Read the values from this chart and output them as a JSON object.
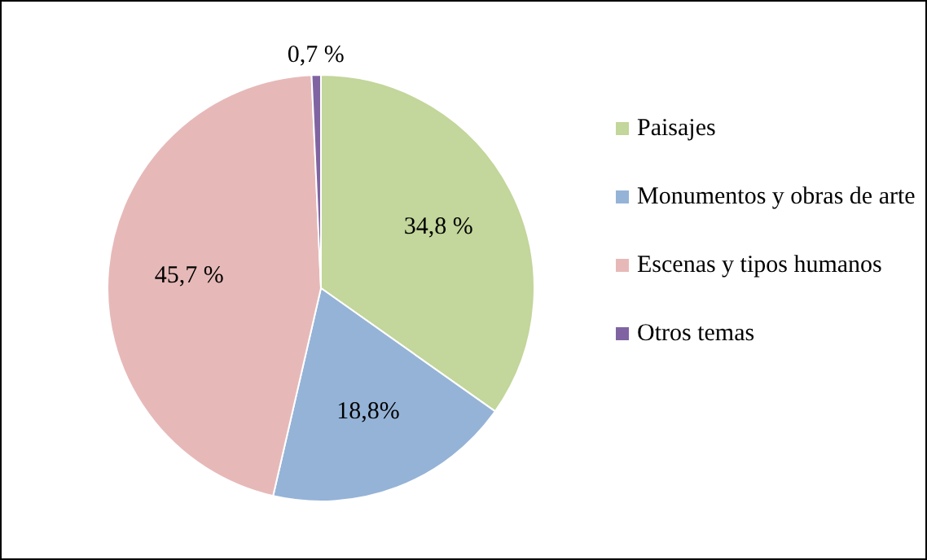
{
  "chart_data": {
    "type": "pie",
    "categories": [
      "Paisajes",
      "Monumentos y obras de arte",
      "Escenas y tipos humanos",
      "Otros temas"
    ],
    "values": [
      34.8,
      18.8,
      45.7,
      0.7
    ],
    "colors": [
      "#c3d69b",
      "#95b3d7",
      "#e6b9b8",
      "#8064a2"
    ],
    "value_labels": [
      "34,8 %",
      "18,8%",
      "45,7 %",
      "0,7 %"
    ],
    "legend": "right"
  }
}
